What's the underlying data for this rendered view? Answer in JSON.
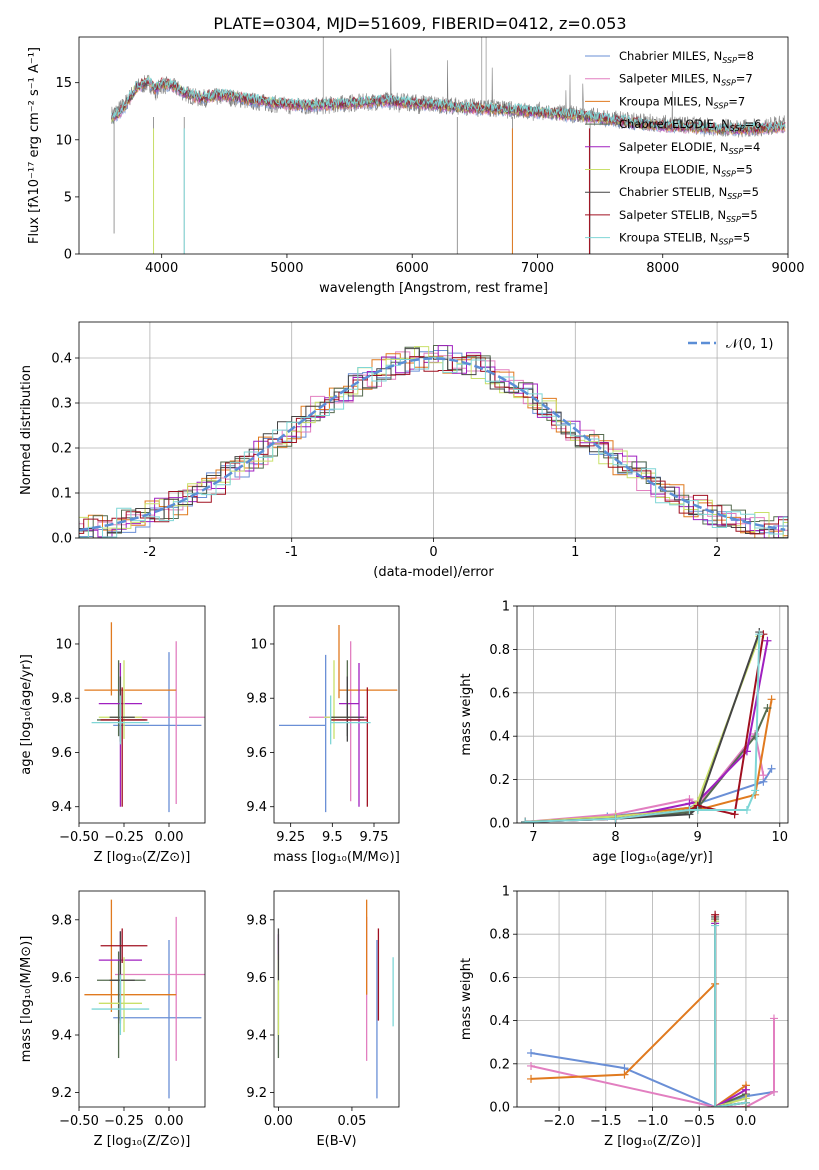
{
  "suptitle": "PLATE=0304, MJD=51609, FIBERID=0412, z=0.053",
  "series_names": [
    "Chabrier MILES",
    "Salpeter MILES",
    "Kroupa MILES",
    "Chabrier ELODIE",
    "Salpeter ELODIE",
    "Kroupa ELODIE",
    "Chabrier STELIB",
    "Salpeter STELIB",
    "Kroupa STELIB"
  ],
  "series_colors": [
    "#6a8fd6",
    "#e27fc0",
    "#e07a1f",
    "#556b4f",
    "#a020c0",
    "#c9e06a",
    "#444444",
    "#a01020",
    "#7fd6d6"
  ],
  "chart_data": [
    {
      "type": "line",
      "id": "spectrum",
      "xlabel": "wavelength [Angstrom, rest frame]",
      "ylabel": "Flux [fλ10⁻¹⁷ erg cm⁻² s⁻¹ A⁻¹]",
      "xlim": [
        3340,
        9000
      ],
      "ylim": [
        0,
        19
      ],
      "xticks": [
        4000,
        5000,
        6000,
        7000,
        8000,
        9000
      ],
      "yticks": [
        0,
        5,
        10,
        15
      ],
      "legend": {
        "placement": "top-right",
        "entries": [
          {
            "label": "Chabrier MILES, N",
            "sub": "SSP",
            "value": "=8"
          },
          {
            "label": "Salpeter MILES, N",
            "sub": "SSP",
            "value": "=7"
          },
          {
            "label": "Kroupa MILES, N",
            "sub": "SSP",
            "value": "=7"
          },
          {
            "label": "Chabrier ELODIE, N",
            "sub": "SSP",
            "value": "=6"
          },
          {
            "label": "Salpeter ELODIE, N",
            "sub": "SSP",
            "value": "=4"
          },
          {
            "label": "Kroupa ELODIE, N",
            "sub": "SSP",
            "value": "=5"
          },
          {
            "label": "Chabrier STELIB, N",
            "sub": "SSP",
            "value": "=5"
          },
          {
            "label": "Salpeter STELIB, N",
            "sub": "SSP",
            "value": "=5"
          },
          {
            "label": "Kroupa STELIB, N",
            "sub": "SSP",
            "value": "=5"
          }
        ]
      },
      "data_x": [
        3600,
        3700,
        3800,
        3900,
        3950,
        4000,
        4100,
        4200,
        4300,
        4500,
        4700,
        5000,
        5200,
        5500,
        5800,
        6000,
        6200,
        6400,
        6600,
        6800,
        7000,
        7200,
        7400,
        7600,
        7800,
        8000,
        8200,
        8400,
        8600,
        8800,
        8980
      ],
      "data_y": [
        12.2,
        13.0,
        14.6,
        15.0,
        14.2,
        14.8,
        14.6,
        14.0,
        13.6,
        13.8,
        13.4,
        13.0,
        12.9,
        13.2,
        13.4,
        13.3,
        13.1,
        12.9,
        12.8,
        12.6,
        12.4,
        12.3,
        12.1,
        11.8,
        11.6,
        11.4,
        11.3,
        11.1,
        11.0,
        11.1,
        11.4
      ],
      "model_x": [
        3600,
        3700,
        3800,
        3900,
        3950,
        4000,
        4100,
        4200,
        4300,
        4500,
        4700,
        5000,
        5200,
        5500,
        5800,
        6000,
        6200,
        6400,
        6600,
        6800,
        7000,
        7200,
        7400,
        7600,
        7800,
        8000,
        8200,
        8400,
        8600,
        8800,
        8980
      ],
      "model_y": [
        11.8,
        12.8,
        14.6,
        15.1,
        14.4,
        14.9,
        14.7,
        14.0,
        13.7,
        13.9,
        13.5,
        13.1,
        13.0,
        13.2,
        13.4,
        13.2,
        13.0,
        12.8,
        12.7,
        12.6,
        12.4,
        12.2,
        12.0,
        11.7,
        11.4,
        11.2,
        11.1,
        11.0,
        10.9,
        11.0,
        11.2
      ]
    },
    {
      "type": "histogram",
      "id": "residuals",
      "xlabel": "(data-model)/error",
      "ylabel": "Normed distribution",
      "xlim": [
        -2.5,
        2.5
      ],
      "ylim": [
        0,
        0.48
      ],
      "xticks": [
        -2,
        -1,
        0,
        1,
        2
      ],
      "yticks": [
        0.0,
        0.1,
        0.2,
        0.3,
        0.4
      ],
      "grid": true,
      "legend": {
        "placement": "top-right",
        "entries": [
          {
            "label": "𝒩(0, 1)",
            "color": "#5b8ed6",
            "dashed": true
          }
        ]
      },
      "bin_width": 0.1
    },
    {
      "type": "errorbar",
      "id": "age-vs-Z",
      "xlabel": "Z [log₁₀(Z/Z⊙)]",
      "ylabel": "age  [log₁₀(age/yr)]",
      "xlim": [
        -0.5,
        0.2
      ],
      "ylim": [
        9.34,
        10.14
      ],
      "xticks": [
        -0.5,
        -0.25,
        0.0
      ],
      "xticklabels": [
        "−0.50",
        "−0.25",
        "0.00"
      ],
      "yticks": [
        9.4,
        9.6,
        9.8,
        10.0
      ],
      "points": [
        {
          "x": 0.0,
          "y": 9.7,
          "xerr": [
            0.31,
            0.18
          ],
          "yerr": [
            0.32,
            0.27
          ]
        },
        {
          "x": 0.04,
          "y": 9.73,
          "xerr": [
            0.34,
            0.16
          ],
          "yerr": [
            0.32,
            0.28
          ]
        },
        {
          "x": -0.32,
          "y": 9.83,
          "xerr": [
            0.15,
            0.36
          ],
          "yerr": [
            0.02,
            0.25
          ]
        },
        {
          "x": -0.28,
          "y": 9.72,
          "xerr": [
            0.12,
            0.15
          ],
          "yerr": [
            0.06,
            0.22
          ]
        },
        {
          "x": -0.27,
          "y": 9.78,
          "xerr": [
            0.12,
            0.12
          ],
          "yerr": [
            0.38,
            0.15
          ]
        },
        {
          "x": -0.25,
          "y": 9.73,
          "xerr": [
            0.14,
            0.1
          ],
          "yerr": [
            0.08,
            0.21
          ]
        },
        {
          "x": -0.27,
          "y": 9.73,
          "xerr": [
            0.06,
            0.08
          ],
          "yerr": [
            0.09,
            0.15
          ]
        },
        {
          "x": -0.26,
          "y": 9.72,
          "xerr": [
            0.12,
            0.14
          ],
          "yerr": [
            0.32,
            0.12
          ]
        },
        {
          "x": -0.27,
          "y": 9.71,
          "xerr": [
            0.16,
            0.16
          ],
          "yerr": [
            0.08,
            0.1
          ]
        }
      ]
    },
    {
      "type": "errorbar",
      "id": "age-vs-mass",
      "xlabel": "mass [log₁₀(M/M⊙)]",
      "ylabel": "",
      "xlim": [
        9.15,
        9.9
      ],
      "ylim": [
        9.34,
        10.14
      ],
      "xticks": [
        9.25,
        9.5,
        9.75
      ],
      "yticks": [
        9.4,
        9.6,
        9.8,
        10.0
      ],
      "points": [
        {
          "x": 9.46,
          "y": 9.7,
          "xerr": [
            0.28,
            0.0
          ],
          "yerr": [
            0.32,
            0.26
          ]
        },
        {
          "x": 9.61,
          "y": 9.73,
          "xerr": [
            0.25,
            0.1
          ],
          "yerr": [
            0.31,
            0.28
          ]
        },
        {
          "x": 9.54,
          "y": 9.83,
          "xerr": [
            0.0,
            0.35
          ],
          "yerr": [
            0.03,
            0.24
          ]
        },
        {
          "x": 9.59,
          "y": 9.72,
          "xerr": [
            0.1,
            0.08
          ],
          "yerr": [
            0.06,
            0.22
          ]
        },
        {
          "x": 9.66,
          "y": 9.78,
          "xerr": [
            0.12,
            0.0
          ],
          "yerr": [
            0.38,
            0.15
          ]
        },
        {
          "x": 9.51,
          "y": 9.73,
          "xerr": [
            0.06,
            0.1
          ],
          "yerr": [
            0.08,
            0.21
          ]
        },
        {
          "x": 9.59,
          "y": 9.73,
          "xerr": [
            0.1,
            0.1
          ],
          "yerr": [
            0.09,
            0.15
          ]
        },
        {
          "x": 9.71,
          "y": 9.72,
          "xerr": [
            0.22,
            0.0
          ],
          "yerr": [
            0.32,
            0.12
          ]
        },
        {
          "x": 9.49,
          "y": 9.71,
          "xerr": [
            0.0,
            0.24
          ],
          "yerr": [
            0.08,
            0.1
          ]
        }
      ]
    },
    {
      "type": "line",
      "id": "mass-weight-vs-age",
      "xlabel": "age  [log₁₀(age/yr)]",
      "ylabel": "mass weight",
      "xlim": [
        6.8,
        10.1
      ],
      "ylim": [
        0,
        1.0
      ],
      "xticks": [
        7,
        8,
        9,
        10
      ],
      "yticks": [
        0.0,
        0.2,
        0.4,
        0.6,
        0.8,
        1.0
      ],
      "grid": true,
      "series": [
        {
          "x": [
            6.9,
            7.9,
            8.9,
            9.0,
            9.8,
            9.9
          ],
          "y": [
            0.005,
            0.03,
            0.07,
            0.09,
            0.19,
            0.25
          ]
        },
        {
          "x": [
            6.9,
            8.0,
            8.9,
            9.0,
            9.7,
            9.8
          ],
          "y": [
            0.005,
            0.04,
            0.11,
            0.08,
            0.41,
            0.22
          ]
        },
        {
          "x": [
            6.9,
            8.0,
            8.9,
            9.0,
            9.7,
            9.9
          ],
          "y": [
            0.005,
            0.03,
            0.07,
            0.06,
            0.13,
            0.57
          ]
        },
        {
          "x": [
            6.9,
            8.0,
            8.9,
            9.0,
            9.7,
            9.85
          ],
          "y": [
            0.005,
            0.02,
            0.05,
            0.07,
            0.4,
            0.53
          ]
        },
        {
          "x": [
            6.9,
            8.0,
            8.9,
            9.0,
            9.6,
            9.85
          ],
          "y": [
            0.005,
            0.02,
            0.09,
            0.1,
            0.33,
            0.84
          ]
        },
        {
          "x": [
            6.9,
            8.0,
            8.9,
            9.0,
            9.75
          ],
          "y": [
            0.005,
            0.03,
            0.06,
            0.1,
            0.86
          ]
        },
        {
          "x": [
            6.9,
            8.0,
            8.9,
            9.0,
            9.75
          ],
          "y": [
            0.005,
            0.02,
            0.04,
            0.07,
            0.88
          ]
        },
        {
          "x": [
            6.9,
            8.0,
            8.9,
            9.0,
            9.45,
            9.8
          ],
          "y": [
            0.005,
            0.02,
            0.06,
            0.08,
            0.04,
            0.87
          ]
        },
        {
          "x": [
            6.9,
            8.0,
            8.9,
            9.0,
            9.6,
            9.7,
            9.75
          ],
          "y": [
            0.005,
            0.02,
            0.06,
            0.06,
            0.06,
            0.15,
            0.87
          ]
        }
      ]
    },
    {
      "type": "errorbar",
      "id": "mass-vs-Z",
      "xlabel": "Z [log₁₀(Z/Z⊙)]",
      "ylabel": "mass [log₁₀(M/M⊙)]",
      "xlim": [
        -0.5,
        0.2
      ],
      "ylim": [
        9.15,
        9.9
      ],
      "xticks": [
        -0.5,
        -0.25,
        0.0
      ],
      "xticklabels": [
        "−0.50",
        "−0.25",
        "0.00"
      ],
      "yticks": [
        9.2,
        9.4,
        9.6,
        9.8
      ],
      "points": [
        {
          "x": 0.0,
          "y": 9.46,
          "xerr": [
            0.31,
            0.18
          ],
          "yerr": [
            0.28,
            0.27
          ]
        },
        {
          "x": 0.04,
          "y": 9.61,
          "xerr": [
            0.34,
            0.16
          ],
          "yerr": [
            0.3,
            0.2
          ]
        },
        {
          "x": -0.32,
          "y": 9.54,
          "xerr": [
            0.15,
            0.36
          ],
          "yerr": [
            0.06,
            0.33
          ]
        },
        {
          "x": -0.28,
          "y": 9.59,
          "xerr": [
            0.12,
            0.15
          ],
          "yerr": [
            0.27,
            0.1
          ]
        },
        {
          "x": -0.27,
          "y": 9.66,
          "xerr": [
            0.12,
            0.12
          ],
          "yerr": [
            0.22,
            0.1
          ]
        },
        {
          "x": -0.25,
          "y": 9.51,
          "xerr": [
            0.14,
            0.1
          ],
          "yerr": [
            0.1,
            0.16
          ]
        },
        {
          "x": -0.27,
          "y": 9.59,
          "xerr": [
            0.06,
            0.08
          ],
          "yerr": [
            0.14,
            0.17
          ]
        },
        {
          "x": -0.26,
          "y": 9.71,
          "xerr": [
            0.12,
            0.14
          ],
          "yerr": [
            0.06,
            0.06
          ]
        },
        {
          "x": -0.27,
          "y": 9.49,
          "xerr": [
            0.16,
            0.16
          ],
          "yerr": [
            0.09,
            0.12
          ]
        }
      ]
    },
    {
      "type": "errorbar",
      "id": "mass-vs-EBV",
      "xlabel": "E(B-V)",
      "ylabel": "",
      "xlim": [
        -0.003,
        0.082
      ],
      "ylim": [
        9.15,
        9.9
      ],
      "xticks": [
        0.0,
        0.05
      ],
      "xticklabels": [
        "0.00",
        "0.05"
      ],
      "yticks": [
        9.2,
        9.4,
        9.6,
        9.8
      ],
      "points": [
        {
          "x": 0.067,
          "y": 9.46,
          "xerr": [
            0,
            0
          ],
          "yerr": [
            0.28,
            0.27
          ]
        },
        {
          "x": 0.06,
          "y": 9.61,
          "xerr": [
            0,
            0
          ],
          "yerr": [
            0.3,
            0.2
          ]
        },
        {
          "x": 0.06,
          "y": 9.54,
          "xerr": [
            0,
            0
          ],
          "yerr": [
            0.0,
            0.33
          ]
        },
        {
          "x": 0.0,
          "y": 9.59,
          "xerr": [
            0,
            0
          ],
          "yerr": [
            0.27,
            0.0
          ]
        },
        {
          "x": 0.0,
          "y": 9.66,
          "xerr": [
            0,
            0
          ],
          "yerr": [
            0.0,
            0.09
          ]
        },
        {
          "x": 0.0,
          "y": 9.51,
          "xerr": [
            0,
            0
          ],
          "yerr": [
            0.11,
            0.17
          ]
        },
        {
          "x": 0.0,
          "y": 9.59,
          "xerr": [
            0,
            0
          ],
          "yerr": [
            0.0,
            0.18
          ]
        },
        {
          "x": 0.068,
          "y": 9.71,
          "xerr": [
            0,
            0
          ],
          "yerr": [
            0.26,
            0.06
          ]
        },
        {
          "x": 0.078,
          "y": 9.55,
          "xerr": [
            0,
            0
          ],
          "yerr": [
            0.12,
            0.12
          ]
        }
      ]
    },
    {
      "type": "line",
      "id": "mass-weight-vs-Z",
      "xlabel": "Z [log₁₀(Z/Z⊙)]",
      "ylabel": "mass weight",
      "xlim": [
        -2.45,
        0.45
      ],
      "ylim": [
        0,
        1.0
      ],
      "xticks": [
        -2.0,
        -1.5,
        -1.0,
        -0.5,
        0.0
      ],
      "xticklabels": [
        "−2.0",
        "−1.5",
        "−1.0",
        "−0.5",
        "0.0"
      ],
      "yticks": [
        0.0,
        0.2,
        0.4,
        0.6,
        0.8,
        1.0
      ],
      "grid": true,
      "series": [
        {
          "x": [
            -2.3,
            -1.3,
            -0.33,
            0.0,
            0.3
          ],
          "y": [
            0.25,
            0.18,
            0.0,
            0.05,
            0.07
          ]
        },
        {
          "x": [
            -2.3,
            -0.33,
            0.0,
            0.3,
            0.3
          ],
          "y": [
            0.19,
            0.0,
            0.0,
            0.07,
            0.41
          ]
        },
        {
          "x": [
            -2.3,
            -1.3,
            -0.33,
            -0.33,
            0.0,
            0.0
          ],
          "y": [
            0.13,
            0.15,
            0.57,
            0.0,
            0.1,
            0.0
          ]
        },
        {
          "x": [
            -0.33,
            -0.33,
            0.0
          ],
          "y": [
            0.87,
            0.0,
            0.06
          ]
        },
        {
          "x": [
            -0.33,
            -0.33,
            0.0
          ],
          "y": [
            0.85,
            0.0,
            0.08
          ]
        },
        {
          "x": [
            -0.33,
            -0.33,
            0.0
          ],
          "y": [
            0.86,
            0.0,
            0.04
          ]
        },
        {
          "x": [
            -0.33,
            -0.33,
            0.0
          ],
          "y": [
            0.88,
            0.0,
            0.02
          ]
        },
        {
          "x": [
            -0.33,
            -0.33,
            0.0
          ],
          "y": [
            0.89,
            0.0,
            0.02
          ]
        },
        {
          "x": [
            -0.33,
            -0.33,
            0.0
          ],
          "y": [
            0.84,
            0.0,
            0.02
          ]
        }
      ]
    }
  ]
}
